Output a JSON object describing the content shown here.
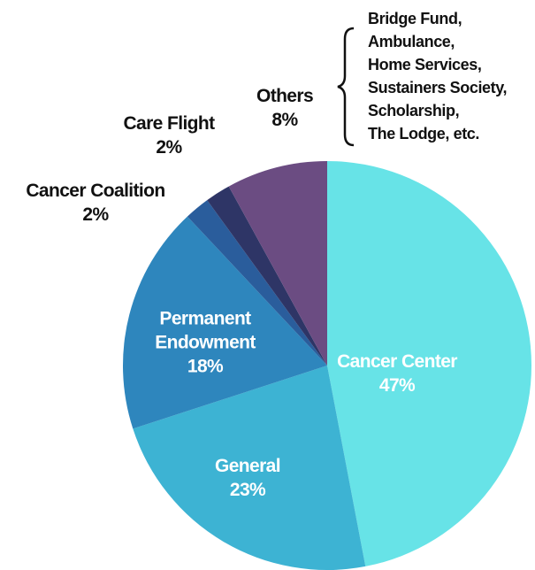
{
  "chart_data": {
    "type": "pie",
    "categories": [
      "Cancer Center",
      "General",
      "Permanent Endowment",
      "Cancer Coalition",
      "Care Flight",
      "Others"
    ],
    "values": [
      47,
      23,
      18,
      2,
      2,
      8
    ],
    "value_labels": [
      "47%",
      "23%",
      "18%",
      "2%",
      "2%",
      "8%"
    ],
    "colors": [
      "#67e3e7",
      "#3db3d3",
      "#2e86bd",
      "#2a5d9c",
      "#2e3566",
      "#6b4c82"
    ],
    "annotation": [
      "Bridge Fund,",
      "Ambulance,",
      "Home Services,",
      "Sustainers Society,",
      "Scholarship,",
      "The Lodge, etc."
    ]
  }
}
